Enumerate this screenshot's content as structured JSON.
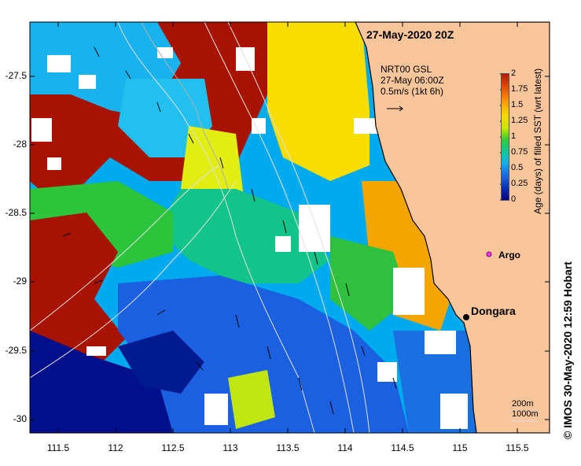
{
  "title": "27-May-2020 20Z",
  "legend": {
    "line1": "NRT00 GSL",
    "line2": "27-May 06:00Z",
    "line3": "0.5m/s (1kt 6h)"
  },
  "colorbar": {
    "title": "Age (days) of filled SST (wrt latest)",
    "ticks": [
      "2",
      "1.75",
      "1.5",
      "1.25",
      "1",
      "0.75",
      "0.5",
      "0.25",
      "0"
    ]
  },
  "places": {
    "dongara": "Dongara",
    "argo": "Argo"
  },
  "scale": {
    "depth1": "200m",
    "depth2": "1000m"
  },
  "credit": "© IMOS 30-May-2020 12:59 Hobart",
  "y_labels": [
    "-27.5",
    "-28",
    "-28.5",
    "-29",
    "-29.5",
    "-30"
  ],
  "x_labels": [
    "111.5",
    "112",
    "112.5",
    "113",
    "113.5",
    "114",
    "114.5",
    "115",
    "115.5"
  ],
  "colors": {
    "land": "#f9c59b",
    "missing": "#ffffff"
  }
}
